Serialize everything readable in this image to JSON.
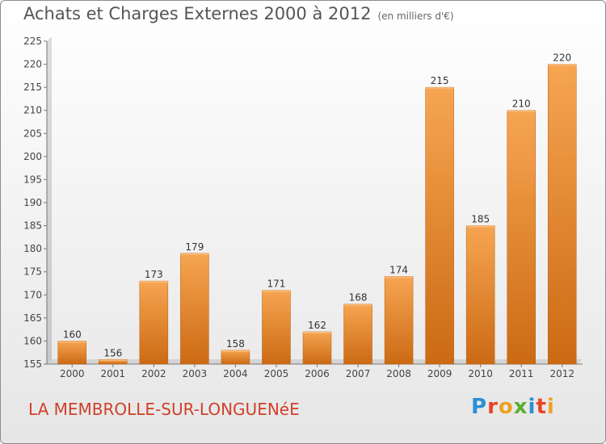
{
  "title": "Achats et Charges Externes 2000 à 2012",
  "subtitle": "(en milliers d'€)",
  "location": "LA MEMBROLLE-SUR-LONGUENéE",
  "brand": {
    "letters": [
      "P",
      "r",
      "o",
      "x",
      "i",
      "t",
      "i"
    ],
    "colors": [
      "#2a8fd6",
      "#e8432a",
      "#f0a020",
      "#5bb030",
      "#2a8fd6",
      "#e8432a",
      "#f0a020"
    ]
  },
  "chart_data": {
    "type": "bar",
    "title": "Achats et Charges Externes 2000 à 2012",
    "subtitle": "(en milliers d'€)",
    "categories": [
      "2000",
      "2001",
      "2002",
      "2003",
      "2004",
      "2005",
      "2006",
      "2007",
      "2008",
      "2009",
      "2010",
      "2011",
      "2012"
    ],
    "values": [
      160,
      156,
      173,
      179,
      158,
      171,
      162,
      168,
      174,
      215,
      185,
      210,
      220
    ],
    "ylim": [
      155,
      225
    ],
    "yticks": [
      155,
      160,
      165,
      170,
      175,
      180,
      185,
      190,
      195,
      200,
      205,
      210,
      215,
      220,
      225
    ],
    "grid": false,
    "bar_color": "#ee8c2e",
    "data_labels": true
  }
}
